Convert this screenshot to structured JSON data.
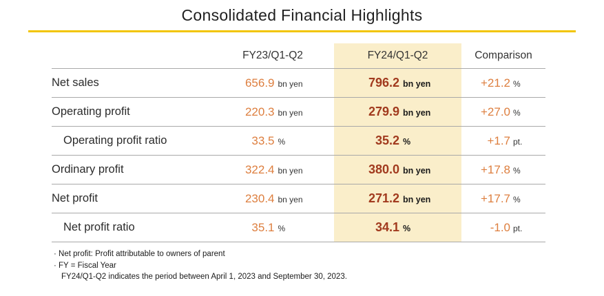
{
  "title": "Consolidated Financial Highlights",
  "colors": {
    "accent": "#F2C500",
    "highlight": "#FAEECA",
    "orange": "#DD7E3E",
    "red": "#A13A1E"
  },
  "table": {
    "headers": {
      "fy23": "FY23/Q1-Q2",
      "fy24": "FY24/Q1-Q2",
      "comparison": "Comparison"
    },
    "rows": [
      {
        "label": "Net sales",
        "fy23_value": "656.9",
        "fy23_unit": "bn yen",
        "fy24_value": "796.2",
        "fy24_unit": "bn yen",
        "comp_value": "+21.2",
        "comp_unit": "%"
      },
      {
        "label": "Operating profit",
        "fy23_value": "220.3",
        "fy23_unit": "bn yen",
        "fy24_value": "279.9",
        "fy24_unit": "bn yen",
        "comp_value": "+27.0",
        "comp_unit": "%"
      },
      {
        "label": "Operating profit ratio",
        "fy23_value": "33.5",
        "fy23_unit": "%",
        "fy24_value": "35.2",
        "fy24_unit": "%",
        "comp_value": "+1.7",
        "comp_unit": "pt."
      },
      {
        "label": "Ordinary profit",
        "fy23_value": "322.4",
        "fy23_unit": "bn yen",
        "fy24_value": "380.0",
        "fy24_unit": "bn yen",
        "comp_value": "+17.8",
        "comp_unit": "%"
      },
      {
        "label": "Net profit",
        "fy23_value": "230.4",
        "fy23_unit": "bn yen",
        "fy24_value": "271.2",
        "fy24_unit": "bn yen",
        "comp_value": "+17.7",
        "comp_unit": "%"
      },
      {
        "label": "Net profit ratio",
        "fy23_value": "35.1",
        "fy23_unit": "%",
        "fy24_value": "34.1",
        "fy24_unit": "%",
        "comp_value": "-1.0",
        "comp_unit": "pt."
      }
    ]
  },
  "footnotes": [
    "· Net profit: Profit attributable to owners of parent",
    "· FY = Fiscal Year",
    "FY24/Q1-Q2 indicates the period between April 1, 2023 and September 30, 2023."
  ]
}
